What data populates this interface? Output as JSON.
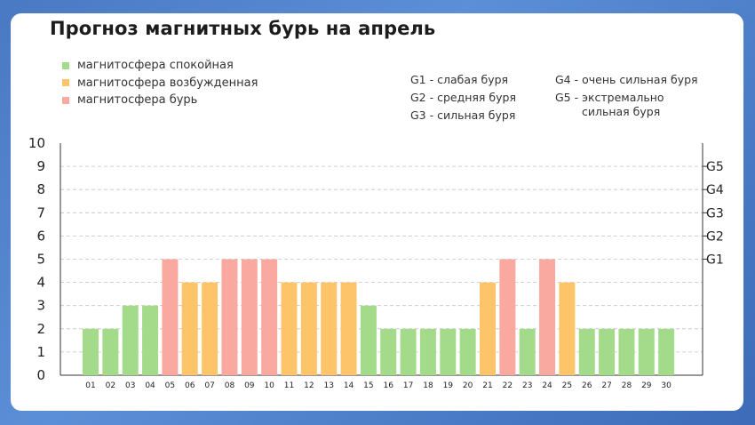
{
  "colors": {
    "calm": "#a3db8a",
    "excited": "#fdc46a",
    "storm": "#faa9a0"
  },
  "legend": {
    "calm": "магнитосфера спокойная",
    "excited": "магнитосфера возбужденная",
    "storm": "магнитосфера бурь"
  },
  "g_levels_notes": {
    "g1": "G1 - слабая буря",
    "g2": "G2 - средняя буря",
    "g3": "G3 - сильная буря",
    "g4": "G4 - очень сильная буря",
    "g5_line1": "G5 - экстремально",
    "g5_line2": "сильная буря"
  },
  "chart_data": {
    "type": "bar",
    "title": "Прогноз магнитных бурь на апрель",
    "categories": [
      "01",
      "02",
      "03",
      "04",
      "05",
      "06",
      "07",
      "08",
      "09",
      "10",
      "11",
      "12",
      "13",
      "14",
      "15",
      "16",
      "17",
      "18",
      "19",
      "20",
      "21",
      "22",
      "23",
      "24",
      "25",
      "26",
      "27",
      "28",
      "29",
      "30"
    ],
    "values": [
      2,
      2,
      3,
      3,
      5,
      4,
      4,
      5,
      5,
      5,
      4,
      4,
      4,
      4,
      3,
      2,
      2,
      2,
      2,
      2,
      4,
      5,
      2,
      5,
      4,
      2,
      2,
      2,
      2,
      2
    ],
    "states": [
      "calm",
      "calm",
      "calm",
      "calm",
      "storm",
      "excited",
      "excited",
      "storm",
      "storm",
      "storm",
      "excited",
      "excited",
      "excited",
      "excited",
      "calm",
      "calm",
      "calm",
      "calm",
      "calm",
      "calm",
      "excited",
      "storm",
      "calm",
      "storm",
      "excited",
      "calm",
      "calm",
      "calm",
      "calm",
      "calm"
    ],
    "ylim": [
      0,
      10
    ],
    "yticks": [
      "0",
      "1",
      "2",
      "3",
      "4",
      "5",
      "6",
      "7",
      "8",
      "9",
      "10"
    ],
    "right_axis": [
      {
        "value": 5,
        "label": "G1"
      },
      {
        "value": 6,
        "label": "G2"
      },
      {
        "value": 7,
        "label": "G3"
      },
      {
        "value": 8,
        "label": "G4"
      },
      {
        "value": 9,
        "label": "G5"
      }
    ],
    "grid": true,
    "legend_position": "top-left"
  }
}
